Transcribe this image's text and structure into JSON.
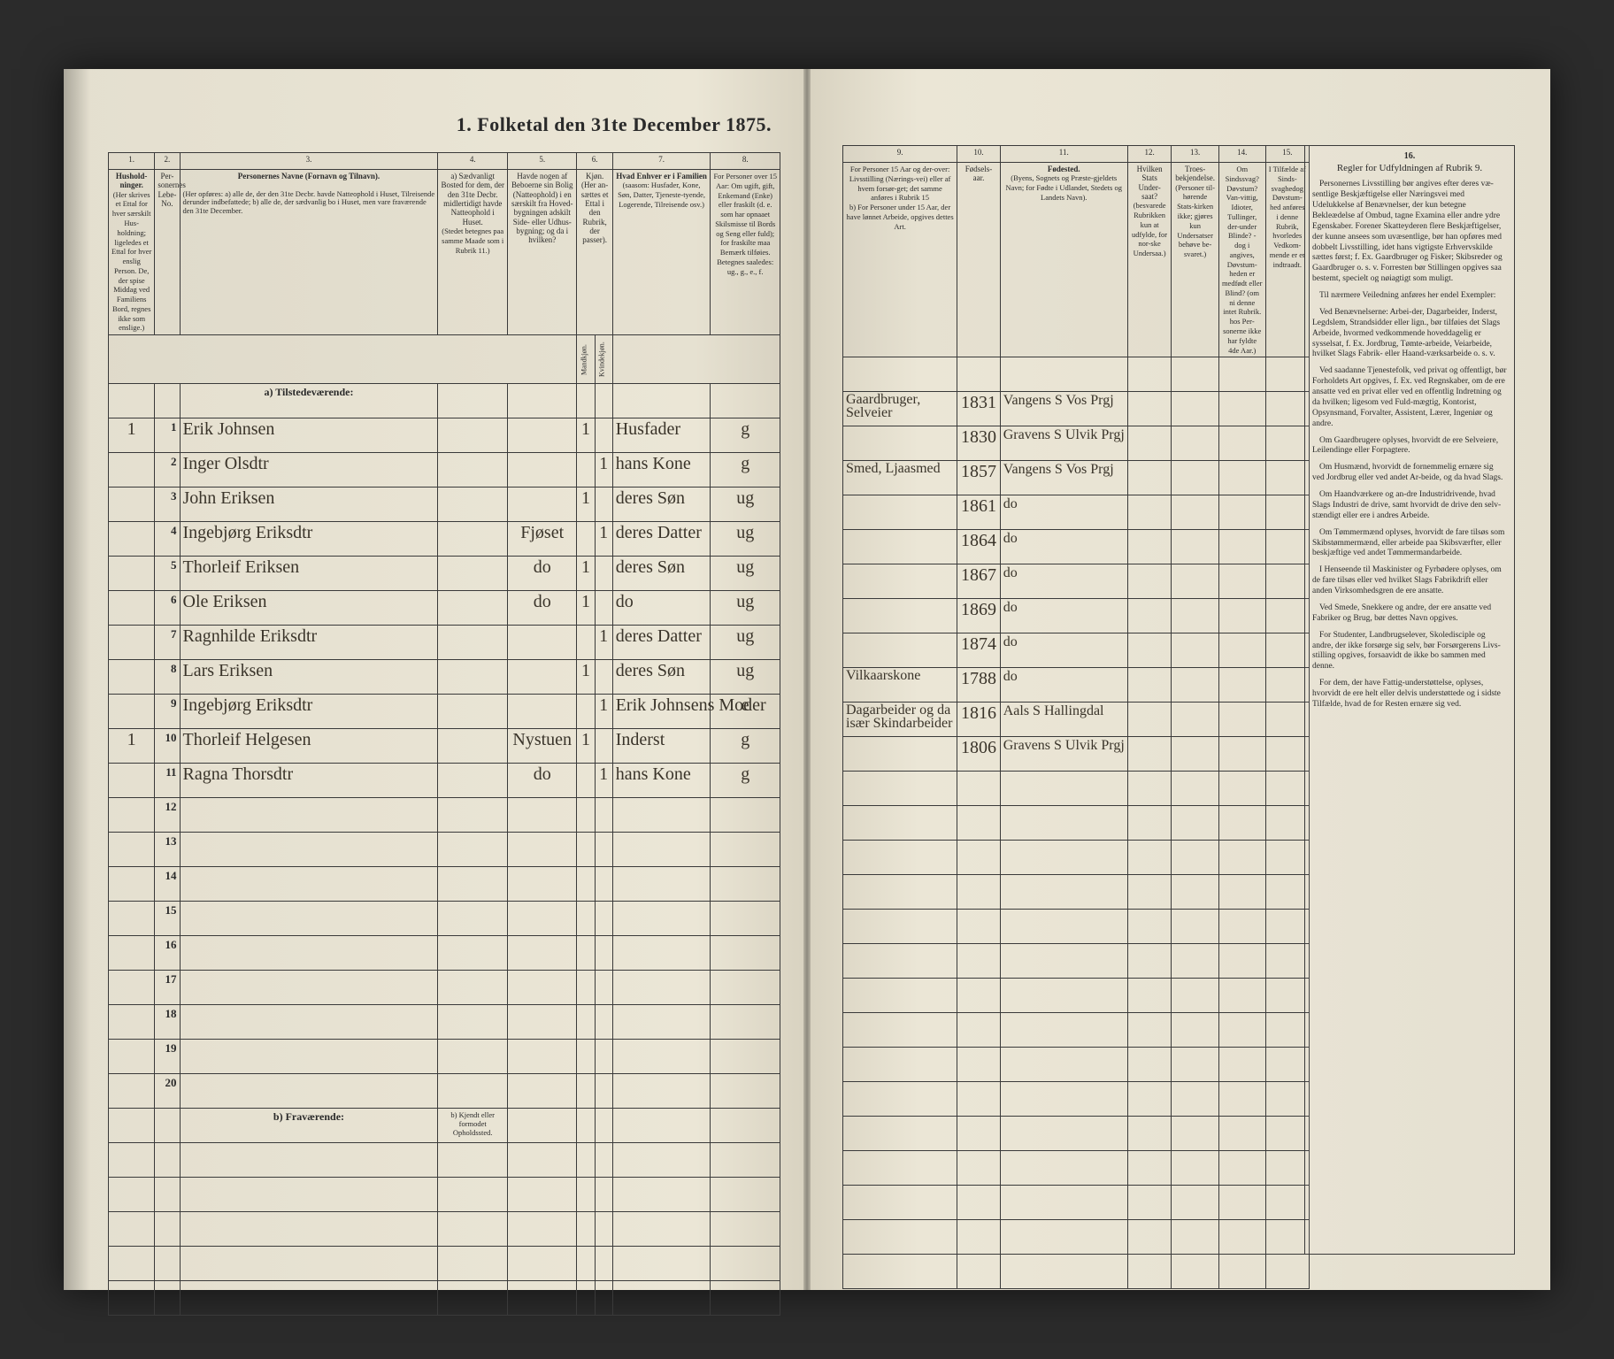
{
  "title": "1. Folketal den 31te December 1875.",
  "colors": {
    "paper": "#e8e3d4",
    "ink": "#2a2a2a",
    "handwriting": "#3a342a",
    "border": "#3a3a3a",
    "background": "#1a1a1a"
  },
  "leftColumns": {
    "nums": [
      "1.",
      "2.",
      "3.",
      "4.",
      "5.",
      "6.",
      "7.",
      "8."
    ],
    "headers": {
      "c1": "Hushold-\nninger.",
      "c1sub": "(Her skrives et Ettal for hver særskilt Hus-holdning; ligeledes et Ettal for hver enslig Person. De, der spise Middag ved Familiens Bord, regnes ikke som enslige.)",
      "c2": "Per-sonernes Lebe-No.",
      "c3": "Personernes Navne (Fornavn og Tilnavn).",
      "c3sub": "(Her opføres:\na) alle de, der den 31te Decbr. havde Natteophold i Huset, Tilreisende derunder indbefattede;\nb) alle de, der sædvanlig bo i Huset, men vare fraværende den 31te December.",
      "c4": "a) Sædvanligt Bosted for dem, der den 31te Decbr. midlertidigt havde Natteophold i Huset.",
      "c4sub": "(Stedet betegnes paa samme Maade som i Rubrik 11.)",
      "c5": "Havde nogen af Beboerne sin Bolig (Natteophold) i en særskilt fra Hoved-bygningen adskilt Side- eller Udhus-bygning; og da i hvilken?",
      "c6": "Kjøn.\n(Her an-sættes et Ettal i den Rubrik, der passer).",
      "c6a": "Mandkjøn.",
      "c6b": "Kvindekjøn.",
      "c7": "Hvad Enhver er i Familien",
      "c7sub": "(saasom: Husfader, Kone, Søn, Datter, Tjeneste-tyende, Logerende, Tilreisende osv.)",
      "c8": "For Personer over 15 Aar: Om ugift, gift, Enkemand (Enke) eller fraskilt (d. e. som har opnaaet Skilsmisse til Bords og Seng eller fuld); for fraskilte maa Bemærk tilføies.",
      "c8sub": "Betegnes saaledes:\nug., g., e., f."
    }
  },
  "rightColumns": {
    "nums": [
      "9.",
      "10.",
      "11.",
      "12.",
      "13.",
      "14.",
      "15.",
      "16."
    ],
    "headers": {
      "c9": "For Personer 15 Aar og der-over: Livsstilling (Nærings-vei) eller af hvem forsør-get; det samme anføres i Rubrik 15",
      "c9b": "b) For Personer under 15 Aar, der have lønnet Arbeide, opgives dettes Art.",
      "c10": "Fødsels-aar.",
      "c11": "Fødested.",
      "c11sub": "(Byens, Sognets og Præste-gjeldets Navn; for Fødte i Udlandet, Stedets og Landets Navn).",
      "c12": "Hvilken Stats Under-saat?",
      "c12sub": "(besvarede Rubrikken kun at udfylde, for nor-ske Undersaa.)",
      "c13": "Troes-bekjendelse.",
      "c13sub": "(Personer til-hørende Stats-kirken ikke; gjøres kun Undersatser behøve be-svaret.)",
      "c14": "Om Sindssvag? Døvstum? Van-vittig, Idioter, Tullinger, der-under Blinde? - dog i angives, Døvstum-heden er medfødt eller Blind? (om ni denne intet Rubrik. hos Per-sonerne ikke har fyldte 4de Aar.)",
      "c15": "I Tilfælde af Sinds-svaghedog Døvstum-hed anføres i denne Rubrik, hvorledes Vedkom-mende er er indtraadt.",
      "c16title": "Regler for Udfyldningen\naf\nRubrik 9."
    }
  },
  "sections": {
    "present": "a) Tilstedeværende:",
    "absent": "b) Fraværende:",
    "absentCol4": "b) Kjendt eller formodet Opholdssted."
  },
  "rows": [
    {
      "n": "1",
      "hh": "1",
      "name": "Erik Johnsen",
      "bosted": "",
      "bolig": "",
      "mk": "1",
      "kk": "",
      "fam": "Husfader",
      "stand": "g",
      "stilling": "Gaardbruger, Selveier",
      "aar": "1831",
      "fodested": "Vangens S Vos Prgj"
    },
    {
      "n": "2",
      "hh": "",
      "name": "Inger Olsdtr",
      "bosted": "",
      "bolig": "",
      "mk": "",
      "kk": "1",
      "fam": "hans Kone",
      "stand": "g",
      "stilling": "",
      "aar": "1830",
      "fodested": "Gravens S Ulvik Prgj"
    },
    {
      "n": "3",
      "hh": "",
      "name": "John Eriksen",
      "bosted": "",
      "bolig": "",
      "mk": "1",
      "kk": "",
      "fam": "deres Søn",
      "stand": "ug",
      "stilling": "Smed, Ljaasmed",
      "aar": "1857",
      "fodested": "Vangens S Vos Prgj"
    },
    {
      "n": "4",
      "hh": "",
      "name": "Ingebjørg Eriksdtr",
      "bosted": "",
      "bolig": "Fjøset",
      "mk": "",
      "kk": "1",
      "fam": "deres Datter",
      "stand": "ug",
      "stilling": "",
      "aar": "1861",
      "fodested": "do"
    },
    {
      "n": "5",
      "hh": "",
      "name": "Thorleif Eriksen",
      "bosted": "",
      "bolig": "do",
      "mk": "1",
      "kk": "",
      "fam": "deres Søn",
      "stand": "ug",
      "stilling": "",
      "aar": "1864",
      "fodested": "do"
    },
    {
      "n": "6",
      "hh": "",
      "name": "Ole Eriksen",
      "bosted": "",
      "bolig": "do",
      "mk": "1",
      "kk": "",
      "fam": "do",
      "stand": "ug",
      "stilling": "",
      "aar": "1867",
      "fodested": "do"
    },
    {
      "n": "7",
      "hh": "",
      "name": "Ragnhilde Eriksdtr",
      "bosted": "",
      "bolig": "",
      "mk": "",
      "kk": "1",
      "fam": "deres Datter",
      "stand": "ug",
      "stilling": "",
      "aar": "1869",
      "fodested": "do"
    },
    {
      "n": "8",
      "hh": "",
      "name": "Lars Eriksen",
      "bosted": "",
      "bolig": "",
      "mk": "1",
      "kk": "",
      "fam": "deres Søn",
      "stand": "ug",
      "stilling": "",
      "aar": "1874",
      "fodested": "do"
    },
    {
      "n": "9",
      "hh": "",
      "name": "Ingebjørg Eriksdtr",
      "bosted": "",
      "bolig": "",
      "mk": "",
      "kk": "1",
      "fam": "Erik Johnsens Moder",
      "stand": "e",
      "stilling": "Vilkaarskone",
      "aar": "1788",
      "fodested": "do"
    },
    {
      "n": "10",
      "hh": "1",
      "name": "Thorleif Helgesen",
      "bosted": "",
      "bolig": "Nystuen",
      "mk": "1",
      "kk": "",
      "fam": "Inderst",
      "stand": "g",
      "stilling": "Dagarbeider og da især Skindarbeider",
      "aar": "1816",
      "fodested": "Aals S Hallingdal"
    },
    {
      "n": "11",
      "hh": "",
      "name": "Ragna Thorsdtr",
      "bosted": "",
      "bolig": "do",
      "mk": "",
      "kk": "1",
      "fam": "hans Kone",
      "stand": "g",
      "stilling": "",
      "aar": "1806",
      "fodested": "Gravens S Ulvik Prgj"
    }
  ],
  "emptyRowsLeft": [
    "12",
    "13",
    "14",
    "15",
    "16",
    "17",
    "18",
    "19",
    "20"
  ],
  "rules16": [
    "Personernes Livsstilling bør angives efter deres væ-sentlige Beskjæftigelse eller Næringsvei med Udelukkelse af Benævnelser, der kun betegne Bekleædelse af Ombud, tagne Examina eller andre ydre Egenskaber. Forener Skatteyderen flere Beskjæftigelser, der kunne ansees som uvæsentlige, bør han opføres med dobbelt Livsstilling, idet hans vigtigste Erhvervskilde sættes først; f. Ex. Gaardbruger og Fisker; Skibsreder og Gaardbruger o. s. v. Forresten bør Stillingen opgives saa bestemt, specielt og nøiagtigt som muligt.",
    "Til nærmere Veiledning anføres her endel Exempler:",
    "Ved Benævnelserne: Arbei-der, Dagarbeider, Inderst, Legdslem, Strandsidder eller lign., bør tilføies det Slags Arbeide, hvormed vedkommende hoveddagelig er sysselsat, f. Ex. Jordbrug, Tømte-arbeide, Veiarbeide, hvilket Slags Fabrik- eller Haand-værksarbeide o. s. v.",
    "Ved saadanne Tjenestefolk, ved privat og offentligt, bør Forholdets Art opgives, f. Ex. ved Regnskaber, om de ere ansatte ved en privat eller ved en offentlig Indretning og da hvilken; ligesom ved Fuld-mægtig, Kontorist, Opsynsmand, Forvalter, Assistent, Lærer, Ingeniør og andre.",
    "Om Gaardbrugere oplyses, hvorvidt de ere Selveiere, Leilendinge eller Forpagtere.",
    "Om Husmænd, hvorvidt de fornemmelig ernære sig ved Jordbrug eller ved andet Ar-beide, og da hvad Slags.",
    "Om Haandværkere og an-dre Industridrivende, hvad Slags Industri de drive, samt hvorvidt de drive den selv-stændigt eller ere i andres Arbeide.",
    "Om Tømmermænd oplyses, hvorvidt de fare tilsøs som Skibstømmermænd, eller arbeide paa Skibsværfter, eller beskjæftige ved andet Tømmermandarbeide.",
    "I Henseende til Maskinister og Fyrbødere oplyses, om de fare tilsøs eller ved hvilket Slags Fabrikdrift eller anden Virksomhedsgren de ere ansatte.",
    "Ved Smede, Snekkere og andre, der ere ansatte ved Fabriker og Brug, bør dettes Navn opgives.",
    "For Studenter, Landbrugselever, Skoledisciple og andre, der ikke forsørge sig selv, bør Forsørgerens Livs-stilling opgives, forsaavidt de ikke bo sammen med denne.",
    "For dem, der have Fattig-understøttelse, oplyses, hvorvidt de ere helt eller delvis understøttede og i sidste Tilfælde, hvad de for Resten ernære sig ved."
  ]
}
